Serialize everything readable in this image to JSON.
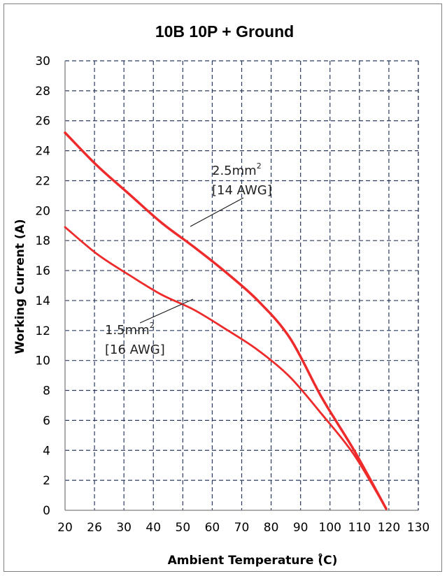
{
  "chart_data": {
    "type": "line",
    "title": "10B 10P + Ground",
    "xlabel": "Ambient Temperature (̊C)",
    "ylabel": "Working Current (A)",
    "xlim": [
      20,
      130
    ],
    "ylim": [
      0,
      30
    ],
    "x_ticks": [
      "20",
      "26",
      "30",
      "40",
      "50",
      "60",
      "70",
      "80",
      "90",
      "100",
      "110",
      "120",
      "130"
    ],
    "y_ticks": [
      0,
      2,
      4,
      6,
      8,
      10,
      12,
      14,
      16,
      18,
      20,
      22,
      24,
      26,
      28,
      30
    ],
    "grid": "dashed",
    "colors": {
      "series": "#ee2a2a",
      "grid": "#2b3a5c",
      "axis": "#7f7f7f"
    },
    "series": [
      {
        "name": "2.5mm2 [14 AWG]",
        "label_line1": "2.5mm",
        "label_sup": "2",
        "label_line2": "[14 AWG]",
        "points": [
          [
            20,
            25.2
          ],
          [
            30,
            23.0
          ],
          [
            40,
            21.1
          ],
          [
            50,
            19.2
          ],
          [
            60,
            17.6
          ],
          [
            70,
            15.9
          ],
          [
            80,
            14.0
          ],
          [
            90,
            11.5
          ],
          [
            100,
            7.5
          ],
          [
            110,
            4.0
          ],
          [
            120,
            0.1
          ]
        ]
      },
      {
        "name": "1.5mm2 [16 AWG]",
        "label_line1": "1.5mm",
        "label_sup": "2",
        "label_line2": "[16 AWG]",
        "points": [
          [
            20,
            18.9
          ],
          [
            30,
            17.1
          ],
          [
            40,
            15.7
          ],
          [
            50,
            14.4
          ],
          [
            60,
            13.4
          ],
          [
            70,
            12.1
          ],
          [
            80,
            10.7
          ],
          [
            90,
            8.9
          ],
          [
            100,
            6.4
          ],
          [
            110,
            3.7
          ],
          [
            120,
            0.1
          ]
        ]
      }
    ]
  }
}
